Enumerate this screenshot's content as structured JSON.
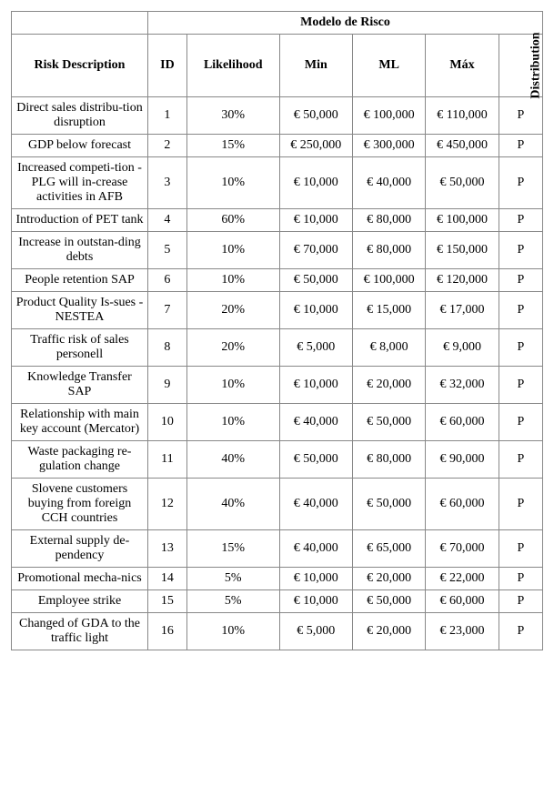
{
  "table": {
    "header": {
      "group_title": "Modelo de Risco",
      "columns": [
        "Risk Description",
        "ID",
        "Likelihood",
        "Min",
        "ML",
        "Máx",
        "Distribution"
      ]
    },
    "rows": [
      {
        "desc": "Direct sales distribu-tion disruption",
        "id": "1",
        "likelihood": "30%",
        "min": "€ 50,000",
        "ml": "€ 100,000",
        "max": "€ 110,000",
        "dist": "P"
      },
      {
        "desc": "GDP below forecast",
        "id": "2",
        "likelihood": "15%",
        "min": "€ 250,000",
        "ml": "€ 300,000",
        "max": "€ 450,000",
        "dist": "P"
      },
      {
        "desc": "Increased competi-tion - PLG will in-crease activities in AFB",
        "id": "3",
        "likelihood": "10%",
        "min": "€ 10,000",
        "ml": "€ 40,000",
        "max": "€ 50,000",
        "dist": "P"
      },
      {
        "desc": "Introduction of PET tank",
        "id": "4",
        "likelihood": "60%",
        "min": "€ 10,000",
        "ml": "€ 80,000",
        "max": "€ 100,000",
        "dist": "P"
      },
      {
        "desc": "Increase in outstan-ding debts",
        "id": "5",
        "likelihood": "10%",
        "min": "€ 70,000",
        "ml": "€ 80,000",
        "max": "€ 150,000",
        "dist": "P"
      },
      {
        "desc": "People retention SAP",
        "id": "6",
        "likelihood": "10%",
        "min": "€ 50,000",
        "ml": "€ 100,000",
        "max": "€ 120,000",
        "dist": "P"
      },
      {
        "desc": "Product Quality Is-sues - NESTEA",
        "id": "7",
        "likelihood": "20%",
        "min": "€ 10,000",
        "ml": "€ 15,000",
        "max": "€ 17,000",
        "dist": "P"
      },
      {
        "desc": "Traffic risk of sales personell",
        "id": "8",
        "likelihood": "20%",
        "min": "€ 5,000",
        "ml": "€ 8,000",
        "max": "€ 9,000",
        "dist": "P"
      },
      {
        "desc": "Knowledge Transfer SAP",
        "id": "9",
        "likelihood": "10%",
        "min": "€ 10,000",
        "ml": "€ 20,000",
        "max": "€ 32,000",
        "dist": "P"
      },
      {
        "desc": "Relationship with main key account (Mercator)",
        "id": "10",
        "likelihood": "10%",
        "min": "€ 40,000",
        "ml": "€ 50,000",
        "max": "€ 60,000",
        "dist": "P"
      },
      {
        "desc": "Waste packaging re-gulation change",
        "id": "11",
        "likelihood": "40%",
        "min": "€ 50,000",
        "ml": "€ 80,000",
        "max": "€ 90,000",
        "dist": "P"
      },
      {
        "desc": "Slovene customers buying from foreign CCH countries",
        "id": "12",
        "likelihood": "40%",
        "min": "€ 40,000",
        "ml": "€ 50,000",
        "max": "€ 60,000",
        "dist": "P"
      },
      {
        "desc": "External supply de-pendency",
        "id": "13",
        "likelihood": "15%",
        "min": "€ 40,000",
        "ml": "€ 65,000",
        "max": "€ 70,000",
        "dist": "P"
      },
      {
        "desc": "Promotional mecha-nics",
        "id": "14",
        "likelihood": "5%",
        "min": "€ 10,000",
        "ml": "€ 20,000",
        "max": "€ 22,000",
        "dist": "P"
      },
      {
        "desc": "Employee strike",
        "id": "15",
        "likelihood": "5%",
        "min": "€ 10,000",
        "ml": "€ 50,000",
        "max": "€ 60,000",
        "dist": "P"
      },
      {
        "desc": "Changed of GDA to the traffic light",
        "id": "16",
        "likelihood": "10%",
        "min": "€ 5,000",
        "ml": "€ 20,000",
        "max": "€ 23,000",
        "dist": "P"
      }
    ]
  }
}
